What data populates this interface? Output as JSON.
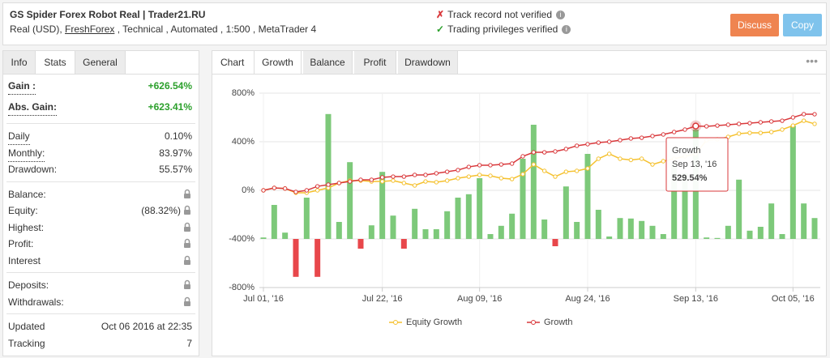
{
  "header": {
    "title": "GS Spider Forex Robot Real | Trader21.RU",
    "subtitle_parts": [
      "Real (USD), ",
      "FreshForex",
      " , Technical , Automated , 1:500 , MetaTrader 4"
    ],
    "checks": [
      {
        "text": "Track record not verified",
        "ok": false
      },
      {
        "text": "Trading privileges verified",
        "ok": true
      }
    ],
    "buttons": [
      "Discuss",
      "Copy"
    ]
  },
  "stats_panel": {
    "tabs": [
      "Info",
      "Stats",
      "General"
    ],
    "active_tab": 1,
    "groups": [
      [
        {
          "label": "Gain :",
          "value": "+626.54%",
          "highlight": true
        },
        {
          "label": "Abs. Gain:",
          "value": "+623.41%",
          "highlight": true
        }
      ],
      [
        {
          "label": "Daily",
          "value": "0.10%"
        },
        {
          "label": "Monthly:",
          "value": "83.97%"
        },
        {
          "label": "Drawdown:",
          "value": "55.57%"
        }
      ],
      [
        {
          "label": "Balance:",
          "locked": true
        },
        {
          "label": "Equity:",
          "value": "(88.32%)",
          "locked": true
        },
        {
          "label": "Highest:",
          "locked": true
        },
        {
          "label": "Profit:",
          "locked": true
        },
        {
          "label": "Interest",
          "locked": true
        }
      ],
      [
        {
          "label": "Deposits:",
          "locked": true
        },
        {
          "label": "Withdrawals:",
          "locked": true
        }
      ],
      [
        {
          "label": "Updated",
          "value": "Oct 06 2016 at 22:35"
        },
        {
          "label": "Tracking",
          "value": "7"
        }
      ]
    ]
  },
  "chart_panel": {
    "label": "Chart",
    "tabs": [
      "Growth",
      "Balance",
      "Profit",
      "Drawdown"
    ],
    "active_tab": 0
  },
  "chart_data": {
    "type": "line",
    "grid": true,
    "categories": [
      "Jul 01, '16",
      null,
      null,
      null,
      null,
      null,
      null,
      null,
      null,
      null,
      null,
      "Jul 22, '16",
      null,
      null,
      null,
      null,
      null,
      null,
      null,
      null,
      "Aug 09, '16",
      null,
      null,
      null,
      null,
      null,
      null,
      null,
      null,
      null,
      "Aug 24, '16",
      null,
      null,
      null,
      null,
      null,
      null,
      null,
      null,
      null,
      "Sep 13, '16",
      null,
      null,
      null,
      null,
      null,
      null,
      null,
      null,
      "Oct 05, '16",
      null,
      null
    ],
    "ylim": [
      -800,
      800
    ],
    "yticks": [
      {
        "value": 800,
        "label": "800%"
      },
      {
        "value": 400,
        "label": "400%"
      },
      {
        "value": 0,
        "label": "0%"
      },
      {
        "value": -400,
        "label": "-400%"
      },
      {
        "value": -800,
        "label": "-800%"
      }
    ],
    "y2lim": [
      -10,
      30
    ],
    "series": [
      {
        "name": "Equity Growth",
        "color": "#f5c12e",
        "values": [
          0,
          20,
          15,
          -20,
          -20,
          0,
          20,
          60,
          80,
          80,
          73,
          73,
          80,
          60,
          40,
          73,
          67,
          80,
          100,
          113,
          127,
          120,
          100,
          93,
          133,
          213,
          160,
          113,
          153,
          160,
          180,
          260,
          300,
          260,
          250,
          260,
          213,
          240,
          260,
          280,
          300,
          413,
          420,
          440,
          467,
          473,
          473,
          480,
          500,
          533,
          573,
          547
        ]
      },
      {
        "name": "Growth",
        "color": "#d9383b",
        "values": [
          0,
          20,
          15,
          -13,
          0,
          33,
          47,
          60,
          73,
          87,
          87,
          107,
          113,
          113,
          127,
          127,
          140,
          153,
          167,
          193,
          207,
          207,
          213,
          220,
          280,
          313,
          313,
          320,
          340,
          367,
          380,
          393,
          400,
          413,
          427,
          433,
          447,
          460,
          480,
          500,
          529.54,
          527,
          533,
          540,
          547,
          553,
          560,
          567,
          573,
          600,
          627,
          626.54
        ]
      },
      {
        "type": "bar",
        "axis": "y2",
        "color": "#7dc97a",
        "negative_color": "#e8474b",
        "values": [
          0.3,
          7,
          1.3,
          -7.8,
          8.5,
          -7.8,
          25.7,
          3.5,
          15.8,
          -2,
          2.8,
          13.8,
          4.8,
          -2,
          6.2,
          2,
          2,
          5.7,
          8.5,
          9.2,
          12.5,
          1,
          2.7,
          5.2,
          16.5,
          23.5,
          4,
          -1.5,
          10.8,
          3.5,
          17.5,
          6,
          0.5,
          4.3,
          4.2,
          3.7,
          2.7,
          1,
          15.8,
          13.5,
          22.5,
          0.3,
          0.2,
          2.7,
          12.2,
          1.7,
          2.5,
          7.3,
          1,
          23.3,
          7.3,
          4.3
        ]
      }
    ],
    "tooltip": {
      "series": 1,
      "index": 40,
      "title": "Growth",
      "date": "Sep 13, '16",
      "value_label": "529.54%"
    }
  }
}
